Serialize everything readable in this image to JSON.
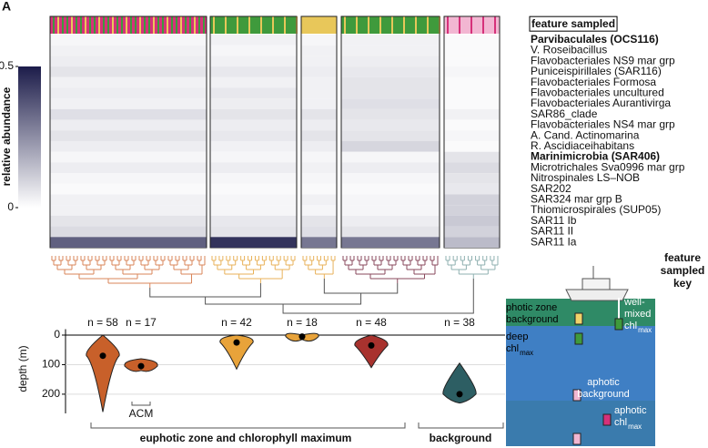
{
  "panel_label": "A",
  "chart_data": [
    {
      "type": "heatmap",
      "feature_label": "feature sampled",
      "colorbar_label": "relative abundance",
      "clim": [
        0,
        0.5
      ],
      "colorbar_ticks": [
        0,
        0.5
      ],
      "low_color": "#ffffff",
      "high_color": "#1c1c4a",
      "bold_rows": [
        0,
        11
      ],
      "rows": [
        "Parvibaculales (OCS116)",
        "V. Roseibacillus",
        "Flavobacteriales NS9 mar grp",
        "Puniceispirillales (SAR116)",
        "Flavobacteriales Formosa",
        "Flavobacteriales uncultured",
        "Flavobacteriales Aurantivirga",
        "SAR86_clade",
        "Flavobacteriales NS4 mar grp",
        "A. Cand. Actinomarina",
        "R. Ascidiaceihabitans",
        "Marinimicrobia (SAR406)",
        "Microtrichales Sva0996 mar grp",
        "Nitrospinales LS–NOB",
        "SAR202",
        "SAR324 mar grp B",
        "Thiomicrospirales (SUP05)",
        "SAR11 Ib",
        "SAR11 II",
        "SAR11 Ia"
      ],
      "values": [
        [
          0.02,
          0.03,
          0.02,
          0.03,
          0.01
        ],
        [
          0.03,
          0.02,
          0.03,
          0.03,
          0.01
        ],
        [
          0.04,
          0.03,
          0.03,
          0.04,
          0.01
        ],
        [
          0.06,
          0.05,
          0.04,
          0.05,
          0.02
        ],
        [
          0.03,
          0.03,
          0.03,
          0.06,
          0.01
        ],
        [
          0.04,
          0.05,
          0.03,
          0.06,
          0.01
        ],
        [
          0.03,
          0.04,
          0.03,
          0.07,
          0.01
        ],
        [
          0.07,
          0.06,
          0.06,
          0.06,
          0.03
        ],
        [
          0.04,
          0.04,
          0.04,
          0.05,
          0.01
        ],
        [
          0.06,
          0.05,
          0.06,
          0.06,
          0.02
        ],
        [
          0.04,
          0.03,
          0.04,
          0.09,
          0.01
        ],
        [
          0.02,
          0.02,
          0.02,
          0.02,
          0.06
        ],
        [
          0.04,
          0.04,
          0.03,
          0.04,
          0.08
        ],
        [
          0.02,
          0.02,
          0.02,
          0.02,
          0.06
        ],
        [
          0.01,
          0.01,
          0.01,
          0.01,
          0.05
        ],
        [
          0.03,
          0.02,
          0.03,
          0.02,
          0.1
        ],
        [
          0.03,
          0.02,
          0.02,
          0.02,
          0.1
        ],
        [
          0.06,
          0.05,
          0.06,
          0.04,
          0.12
        ],
        [
          0.08,
          0.06,
          0.07,
          0.06,
          0.1
        ],
        [
          0.35,
          0.45,
          0.3,
          0.3,
          0.15
        ]
      ]
    },
    {
      "type": "violin",
      "ylabel": "depth (m)",
      "ylim": [
        -20,
        265
      ],
      "yticks": [
        0,
        100,
        200
      ],
      "grid": true,
      "groups": [
        {
          "label": "n = 58",
          "color": "#c8602a",
          "min": 0,
          "median": 70,
          "max": 260
        },
        {
          "label": "n = 17",
          "color": "#c8602a",
          "min": 80,
          "median": 105,
          "max": 120
        },
        {
          "label": "n = 42",
          "color": "#e8a33a",
          "min": 0,
          "median": 25,
          "max": 115
        },
        {
          "label": "n = 18",
          "color": "#e8a33a",
          "min": 0,
          "median": 5,
          "max": 15
        },
        {
          "label": "n = 48",
          "color": "#a8322e",
          "min": 0,
          "median": 35,
          "max": 110
        },
        {
          "label": "n = 38",
          "color": "#2d5e63",
          "min": 95,
          "median": 200,
          "max": 230
        }
      ],
      "brackets": [
        "ACM",
        "euphotic zone and chlorophyll maximum",
        "background"
      ]
    }
  ],
  "key": {
    "title": [
      "feature",
      "sampled",
      "key"
    ],
    "items": [
      {
        "label": [
          "photic zone",
          "background"
        ]
      },
      {
        "label": [
          "deep",
          "chl"
        ],
        "sub": "max"
      },
      {
        "label": [
          "well-",
          "mixed",
          "chl"
        ],
        "sub": "max"
      },
      {
        "label": [
          "aphotic",
          "background"
        ]
      },
      {
        "label": [
          "aphotic",
          "chl"
        ],
        "sub": "max"
      }
    ]
  }
}
